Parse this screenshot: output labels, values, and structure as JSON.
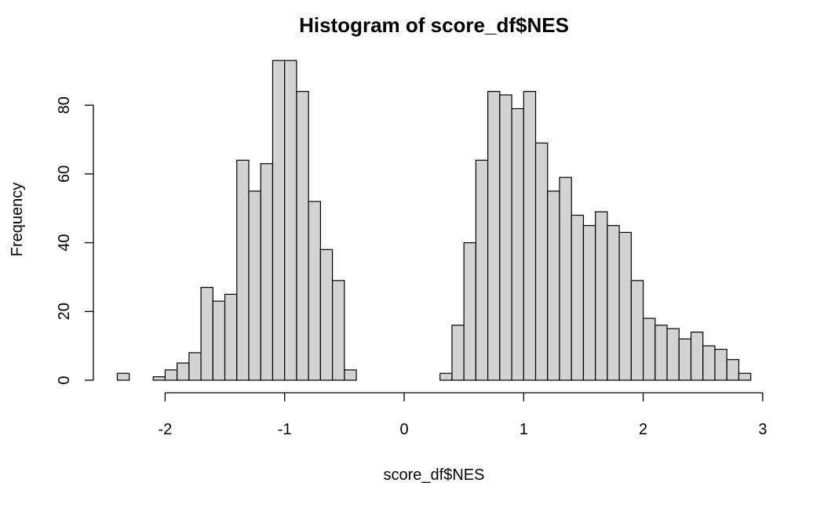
{
  "chart_data": {
    "type": "bar",
    "title": "Histogram of score_df$NES",
    "xlabel": "score_df$NES",
    "ylabel": "Frequency",
    "bin_width": 0.1,
    "xlim": [
      -2.4,
      2.9
    ],
    "ylim": [
      0,
      93
    ],
    "x_ticks": [
      -2,
      -1,
      0,
      1,
      2,
      3
    ],
    "y_ticks": [
      0,
      20,
      40,
      60,
      80
    ],
    "fill_color": "#d3d3d3",
    "grid": false,
    "bins": [
      {
        "x0": -2.4,
        "count": 2
      },
      {
        "x0": -2.3,
        "count": 0
      },
      {
        "x0": -2.2,
        "count": 0
      },
      {
        "x0": -2.1,
        "count": 1
      },
      {
        "x0": -2.0,
        "count": 3
      },
      {
        "x0": -1.9,
        "count": 5
      },
      {
        "x0": -1.8,
        "count": 8
      },
      {
        "x0": -1.7,
        "count": 27
      },
      {
        "x0": -1.6,
        "count": 23
      },
      {
        "x0": -1.5,
        "count": 25
      },
      {
        "x0": -1.4,
        "count": 64
      },
      {
        "x0": -1.3,
        "count": 55
      },
      {
        "x0": -1.2,
        "count": 63
      },
      {
        "x0": -1.1,
        "count": 93
      },
      {
        "x0": -1.0,
        "count": 93
      },
      {
        "x0": -0.9,
        "count": 84
      },
      {
        "x0": -0.8,
        "count": 52
      },
      {
        "x0": -0.7,
        "count": 38
      },
      {
        "x0": -0.6,
        "count": 29
      },
      {
        "x0": -0.5,
        "count": 3
      },
      {
        "x0": -0.4,
        "count": 0
      },
      {
        "x0": -0.3,
        "count": 0
      },
      {
        "x0": -0.2,
        "count": 0
      },
      {
        "x0": -0.1,
        "count": 0
      },
      {
        "x0": 0.0,
        "count": 0
      },
      {
        "x0": 0.1,
        "count": 0
      },
      {
        "x0": 0.2,
        "count": 0
      },
      {
        "x0": 0.3,
        "count": 2
      },
      {
        "x0": 0.4,
        "count": 16
      },
      {
        "x0": 0.5,
        "count": 40
      },
      {
        "x0": 0.6,
        "count": 64
      },
      {
        "x0": 0.7,
        "count": 84
      },
      {
        "x0": 0.8,
        "count": 83
      },
      {
        "x0": 0.9,
        "count": 79
      },
      {
        "x0": 1.0,
        "count": 84
      },
      {
        "x0": 1.1,
        "count": 69
      },
      {
        "x0": 1.2,
        "count": 55
      },
      {
        "x0": 1.3,
        "count": 59
      },
      {
        "x0": 1.4,
        "count": 48
      },
      {
        "x0": 1.5,
        "count": 45
      },
      {
        "x0": 1.6,
        "count": 49
      },
      {
        "x0": 1.7,
        "count": 45
      },
      {
        "x0": 1.8,
        "count": 43
      },
      {
        "x0": 1.9,
        "count": 29
      },
      {
        "x0": 2.0,
        "count": 18
      },
      {
        "x0": 2.1,
        "count": 16
      },
      {
        "x0": 2.2,
        "count": 15
      },
      {
        "x0": 2.3,
        "count": 12
      },
      {
        "x0": 2.4,
        "count": 14
      },
      {
        "x0": 2.5,
        "count": 10
      },
      {
        "x0": 2.6,
        "count": 9
      },
      {
        "x0": 2.7,
        "count": 6
      },
      {
        "x0": 2.8,
        "count": 2
      }
    ]
  }
}
